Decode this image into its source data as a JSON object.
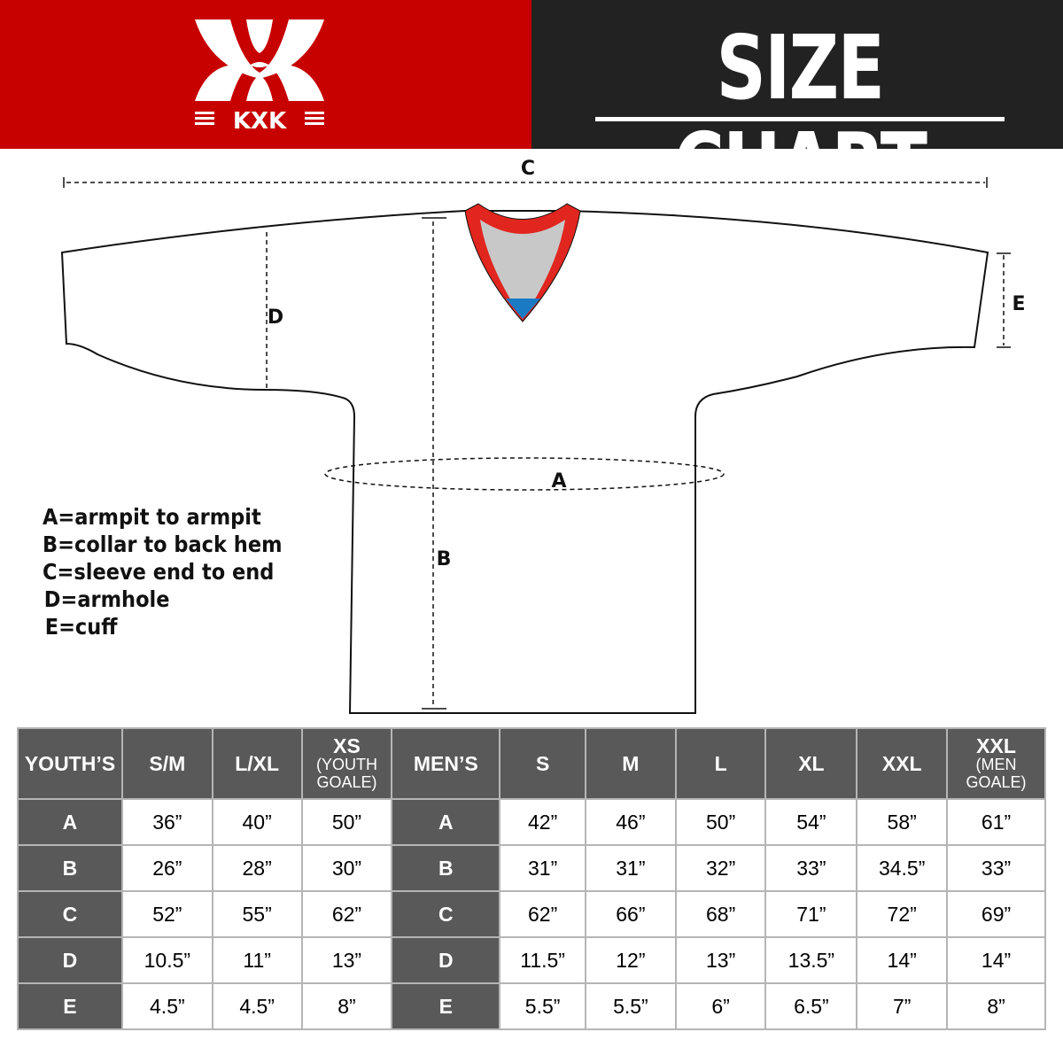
{
  "brand": {
    "name": "KXK",
    "color": "#c70000"
  },
  "header": {
    "title": "SIZE CHART"
  },
  "diagram": {
    "labels": {
      "a": "A",
      "b": "B",
      "c": "C",
      "d": "D",
      "e": "E"
    },
    "colors": {
      "collar": "#e0261f",
      "inner": "#c8c8c8",
      "accent": "#1a7ac4"
    }
  },
  "legend": [
    "A=armpit to armpit",
    "B=collar to back hem",
    "C=sleeve end to end",
    "D=armhole",
    "E=cuff"
  ],
  "table": {
    "youth": {
      "header": "YOUTH’S",
      "columns": [
        {
          "size": "S/M"
        },
        {
          "size": "L/XL"
        },
        {
          "size": "XS",
          "note": "(YOUTH GOALE)"
        }
      ],
      "rows": [
        {
          "label": "A",
          "values": [
            "36”",
            "40”",
            "50”"
          ]
        },
        {
          "label": "B",
          "values": [
            "26”",
            "28”",
            "30”"
          ]
        },
        {
          "label": "C",
          "values": [
            "52”",
            "55”",
            "62”"
          ]
        },
        {
          "label": "D",
          "values": [
            "10.5”",
            "11”",
            "13”"
          ]
        },
        {
          "label": "E",
          "values": [
            "4.5”",
            "4.5”",
            "8”"
          ]
        }
      ]
    },
    "men": {
      "header": "MEN’S",
      "columns": [
        {
          "size": "S"
        },
        {
          "size": "M"
        },
        {
          "size": "L"
        },
        {
          "size": "XL"
        },
        {
          "size": "XXL"
        },
        {
          "size": "XXL",
          "note": "(MEN GOALE)"
        }
      ],
      "rows": [
        {
          "label": "A",
          "values": [
            "42”",
            "46”",
            "50”",
            "54”",
            "58”",
            "61”"
          ]
        },
        {
          "label": "B",
          "values": [
            "31”",
            "31”",
            "32”",
            "33”",
            "34.5”",
            "33”"
          ]
        },
        {
          "label": "C",
          "values": [
            "62”",
            "66”",
            "68”",
            "71”",
            "72”",
            "69”"
          ]
        },
        {
          "label": "D",
          "values": [
            "11.5”",
            "12”",
            "13”",
            "13.5”",
            "14”",
            "14”"
          ]
        },
        {
          "label": "E",
          "values": [
            "5.5”",
            "5.5”",
            "6”",
            "6.5”",
            "7”",
            "8”"
          ]
        }
      ]
    }
  }
}
